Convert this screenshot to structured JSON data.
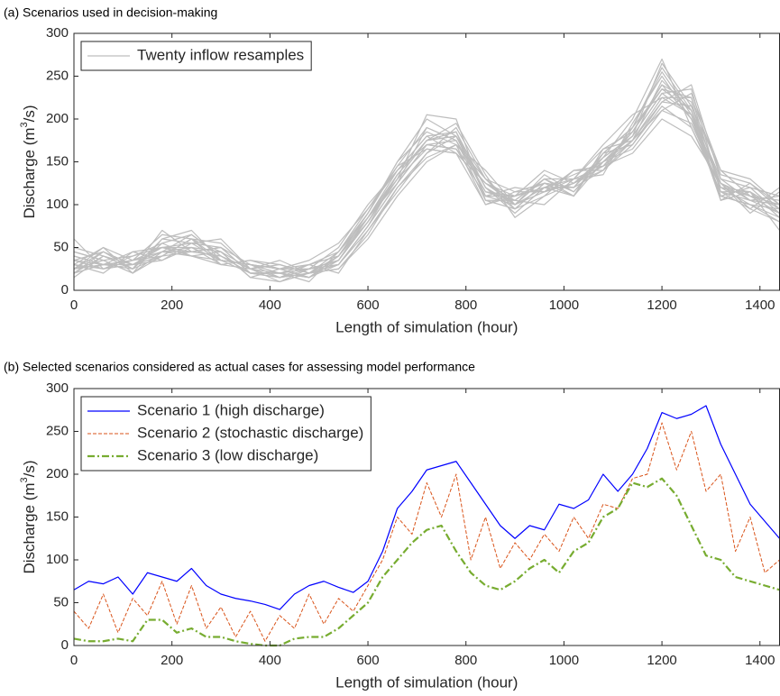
{
  "chart_data": [
    {
      "type": "line",
      "title": "(a) Scenarios used in decision-making",
      "xlabel": "Length of simulation (hour)",
      "ylabel": [
        "Discharge (m",
        "3",
        "/s)"
      ],
      "legend_label": "Twenty inflow resamples",
      "legend": "upper left",
      "color": "#bdbdbd",
      "xlim": [
        0,
        1440
      ],
      "ylim": [
        0,
        300
      ],
      "xticks": [
        0,
        200,
        400,
        600,
        800,
        1000,
        1200,
        1400
      ],
      "yticks": [
        0,
        50,
        100,
        150,
        200,
        250,
        300
      ],
      "x": [
        0,
        60,
        120,
        180,
        240,
        300,
        360,
        420,
        480,
        540,
        600,
        660,
        720,
        780,
        840,
        900,
        960,
        1020,
        1080,
        1140,
        1200,
        1260,
        1320,
        1380,
        1440
      ],
      "series": [
        {
          "values": [
            20,
            45,
            25,
            60,
            70,
            35,
            20,
            15,
            30,
            40,
            90,
            150,
            200,
            180,
            110,
            100,
            130,
            110,
            160,
            190,
            260,
            210,
            110,
            100,
            80
          ]
        },
        {
          "values": [
            40,
            30,
            35,
            50,
            45,
            50,
            30,
            25,
            15,
            30,
            70,
            120,
            160,
            190,
            130,
            95,
            110,
            140,
            140,
            170,
            220,
            240,
            130,
            120,
            110
          ]
        },
        {
          "values": [
            25,
            50,
            20,
            40,
            60,
            45,
            15,
            10,
            25,
            50,
            100,
            140,
            180,
            160,
            100,
            115,
            125,
            120,
            155,
            200,
            270,
            190,
            115,
            105,
            90
          ]
        },
        {
          "values": [
            35,
            25,
            40,
            55,
            40,
            30,
            35,
            30,
            20,
            25,
            60,
            110,
            150,
            170,
            140,
            100,
            115,
            130,
            145,
            160,
            200,
            180,
            125,
            95,
            120
          ]
        },
        {
          "values": [
            15,
            40,
            30,
            35,
            55,
            60,
            25,
            20,
            10,
            45,
            85,
            135,
            175,
            185,
            120,
            90,
            120,
            110,
            165,
            185,
            240,
            220,
            105,
            115,
            70
          ]
        },
        {
          "values": [
            45,
            35,
            20,
            45,
            65,
            40,
            20,
            15,
            25,
            30,
            75,
            125,
            190,
            175,
            115,
            110,
            140,
            125,
            150,
            175,
            210,
            230,
            140,
            130,
            100
          ]
        },
        {
          "values": [
            30,
            20,
            45,
            50,
            50,
            35,
            30,
            25,
            35,
            55,
            95,
            145,
            165,
            160,
            125,
            105,
            100,
            130,
            135,
            195,
            250,
            200,
            110,
            100,
            85
          ]
        },
        {
          "values": [
            50,
            40,
            25,
            40,
            45,
            50,
            20,
            20,
            15,
            35,
            80,
            130,
            205,
            200,
            105,
            95,
            125,
            120,
            160,
            170,
            215,
            190,
            120,
            110,
            105
          ]
        },
        {
          "values": [
            20,
            30,
            35,
            65,
            60,
            30,
            25,
            35,
            20,
            40,
            85,
            140,
            170,
            165,
            110,
            120,
            115,
            140,
            145,
            185,
            235,
            225,
            135,
            125,
            95
          ]
        },
        {
          "values": [
            35,
            45,
            30,
            45,
            40,
            45,
            15,
            25,
            30,
            20,
            70,
            115,
            160,
            180,
            130,
            100,
            135,
            115,
            150,
            180,
            265,
            215,
            125,
            90,
            115
          ]
        },
        {
          "values": [
            25,
            35,
            40,
            50,
            55,
            35,
            30,
            15,
            20,
            45,
            90,
            150,
            185,
            170,
            100,
            110,
            120,
            130,
            170,
            205,
            225,
            205,
            110,
            120,
            90
          ]
        },
        {
          "values": [
            40,
            30,
            25,
            70,
            45,
            40,
            20,
            20,
            25,
            30,
            75,
            135,
            175,
            195,
            135,
            85,
            110,
            125,
            140,
            175,
            245,
            210,
            130,
            105,
            100
          ]
        },
        {
          "values": [
            30,
            50,
            35,
            40,
            60,
            55,
            25,
            10,
            20,
            35,
            85,
            125,
            170,
            175,
            115,
            105,
            130,
            115,
            155,
            180,
            230,
            235,
            115,
            115,
            85
          ]
        },
        {
          "values": [
            60,
            25,
            30,
            45,
            50,
            30,
            35,
            25,
            15,
            40,
            80,
            130,
            165,
            160,
            125,
            100,
            120,
            135,
            150,
            165,
            210,
            195,
            120,
            100,
            95
          ]
        },
        {
          "values": [
            20,
            40,
            25,
            55,
            65,
            40,
            20,
            20,
            30,
            45,
            95,
            140,
            180,
            185,
            110,
            110,
            125,
            120,
            160,
            190,
            255,
            205,
            105,
            125,
            100
          ]
        },
        {
          "values": [
            35,
            30,
            45,
            35,
            50,
            45,
            25,
            15,
            20,
            25,
            65,
            120,
            155,
            170,
            130,
            115,
            115,
            125,
            145,
            175,
            220,
            215,
            140,
            110,
            90
          ]
        },
        {
          "values": [
            25,
            45,
            30,
            50,
            40,
            35,
            30,
            25,
            25,
            35,
            80,
            135,
            175,
            180,
            120,
            95,
            125,
            110,
            150,
            185,
            240,
            200,
            125,
            105,
            110
          ]
        },
        {
          "values": [
            45,
            35,
            20,
            60,
            55,
            50,
            20,
            20,
            15,
            40,
            90,
            145,
            190,
            175,
            105,
            105,
            130,
            130,
            165,
            175,
            225,
            225,
            115,
            95,
            80
          ]
        },
        {
          "values": [
            30,
            25,
            35,
            45,
            45,
            40,
            25,
            30,
            20,
            30,
            75,
            125,
            170,
            165,
            125,
            110,
            120,
            120,
            140,
            190,
            235,
            210,
            120,
            115,
            95
          ]
        },
        {
          "values": [
            25,
            30,
            30,
            40,
            60,
            35,
            30,
            20,
            25,
            35,
            85,
            130,
            175,
            180,
            120,
            100,
            115,
            125,
            155,
            180,
            230,
            205,
            125,
            110,
            100
          ]
        }
      ]
    },
    {
      "type": "line",
      "title": "(b) Selected scenarios considered as actual cases for assessing model performance",
      "xlabel": "Length of simulation (hour)",
      "ylabel": [
        "Discharge (m",
        "3",
        "/s)"
      ],
      "legend": "upper left",
      "xlim": [
        0,
        1440
      ],
      "ylim": [
        0,
        300
      ],
      "xticks": [
        0,
        200,
        400,
        600,
        800,
        1000,
        1200,
        1400
      ],
      "yticks": [
        0,
        50,
        100,
        150,
        200,
        250,
        300
      ],
      "x": [
        0,
        30,
        60,
        90,
        120,
        150,
        180,
        210,
        240,
        270,
        300,
        330,
        360,
        390,
        420,
        450,
        480,
        510,
        540,
        570,
        600,
        630,
        660,
        690,
        720,
        750,
        780,
        810,
        840,
        870,
        900,
        930,
        960,
        990,
        1020,
        1050,
        1080,
        1110,
        1140,
        1170,
        1200,
        1230,
        1260,
        1290,
        1320,
        1350,
        1380,
        1410,
        1440
      ],
      "series": [
        {
          "name": "Scenario 1 (high discharge)",
          "color": "#0000ff",
          "dash": "solid",
          "values": [
            65,
            75,
            72,
            80,
            60,
            85,
            80,
            75,
            90,
            70,
            60,
            55,
            52,
            48,
            42,
            60,
            70,
            75,
            68,
            62,
            75,
            110,
            160,
            180,
            205,
            210,
            215,
            190,
            165,
            140,
            125,
            140,
            135,
            165,
            160,
            170,
            200,
            180,
            200,
            230,
            272,
            265,
            270,
            280,
            235,
            200,
            165,
            145,
            125
          ]
        },
        {
          "name": "Scenario 2 (stochastic discharge)",
          "color": "#d95319",
          "dash": "dashed",
          "values": [
            40,
            20,
            60,
            15,
            55,
            35,
            75,
            25,
            70,
            20,
            45,
            10,
            40,
            5,
            35,
            20,
            60,
            25,
            55,
            40,
            70,
            100,
            150,
            130,
            190,
            150,
            200,
            100,
            150,
            90,
            120,
            100,
            130,
            110,
            150,
            125,
            165,
            160,
            195,
            200,
            260,
            205,
            250,
            180,
            200,
            110,
            150,
            85,
            100
          ]
        },
        {
          "name": "Scenario 3 (low discharge)",
          "color": "#77ac30",
          "dash": "dashdot",
          "values": [
            8,
            5,
            5,
            8,
            5,
            30,
            30,
            15,
            20,
            10,
            10,
            5,
            2,
            0,
            0,
            8,
            10,
            10,
            20,
            35,
            50,
            80,
            100,
            120,
            135,
            140,
            110,
            85,
            70,
            65,
            75,
            90,
            100,
            85,
            110,
            120,
            150,
            160,
            190,
            185,
            195,
            175,
            140,
            105,
            100,
            80,
            75,
            70,
            65
          ]
        }
      ]
    }
  ]
}
